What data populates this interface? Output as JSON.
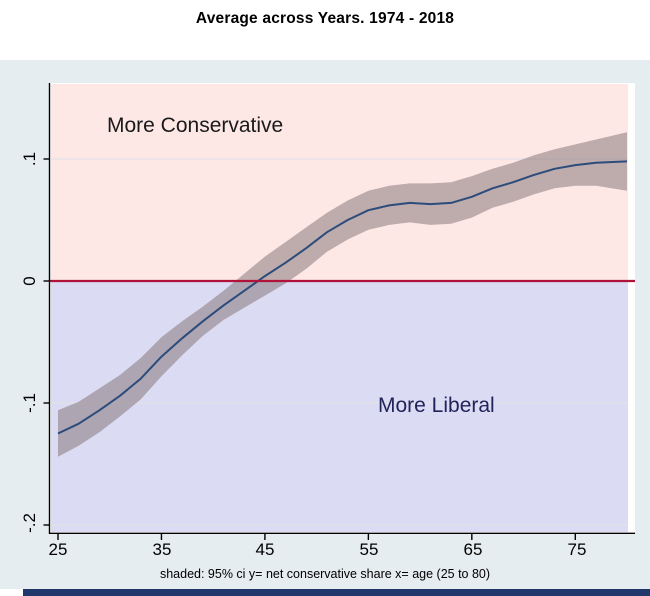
{
  "title": "Average across Years.  1974 - 2018",
  "annotations": {
    "conservative": "More Conservative",
    "liberal": "More Liberal"
  },
  "caption": "shaded: 95% ci  y= net conservative share  x= age (25 to 80)",
  "colors": {
    "graph_bg": "#e6edf0",
    "plot_bg": "#ffffff",
    "conservative_region": "#fde8e6",
    "liberal_region": "#dbdcf4",
    "gridline": "#e2e1e6",
    "ci_band": "rgba(128,110,112,0.5)",
    "mean_line": "#2c4c7c",
    "zero_line": "#b0123a",
    "axis": "#000000",
    "conservative_text": "#1a1a1a",
    "liberal_text": "#23235c",
    "window_strip": "#20386c"
  },
  "chart_data": {
    "type": "line",
    "title": "Average across Years.  1974 - 2018",
    "xlabel": "age (25 to 80)",
    "ylabel": "net conservative share",
    "xlim": [
      25,
      80
    ],
    "ylim": [
      -0.205,
      0.161
    ],
    "grid": true,
    "x_ticks": [
      25,
      35,
      45,
      55,
      65,
      75
    ],
    "x_tick_labels": [
      "25",
      "35",
      "45",
      "55",
      "65",
      "75"
    ],
    "y_ticks": [
      0.1,
      0,
      -0.1,
      -0.2
    ],
    "y_tick_labels": [
      ".1",
      "0",
      "-.1",
      "-.2"
    ],
    "zero_reference_line": 0,
    "x": [
      25,
      27,
      29,
      31,
      33,
      35,
      37,
      39,
      41,
      43,
      45,
      47,
      49,
      51,
      53,
      55,
      57,
      59,
      61,
      63,
      65,
      67,
      69,
      71,
      73,
      75,
      77,
      80
    ],
    "series": [
      {
        "name": "net conservative share (smoothed mean)",
        "values": [
          -0.125,
          -0.117,
          -0.106,
          -0.094,
          -0.08,
          -0.062,
          -0.047,
          -0.033,
          -0.02,
          -0.008,
          0.004,
          0.015,
          0.027,
          0.04,
          0.05,
          0.058,
          0.062,
          0.064,
          0.063,
          0.064,
          0.069,
          0.076,
          0.081,
          0.087,
          0.092,
          0.095,
          0.097,
          0.098
        ]
      },
      {
        "name": "95% CI upper",
        "values": [
          -0.106,
          -0.099,
          -0.088,
          -0.077,
          -0.063,
          -0.046,
          -0.033,
          -0.021,
          -0.008,
          0.006,
          0.02,
          0.032,
          0.044,
          0.056,
          0.066,
          0.074,
          0.078,
          0.08,
          0.08,
          0.081,
          0.086,
          0.092,
          0.097,
          0.103,
          0.108,
          0.112,
          0.116,
          0.122
        ]
      },
      {
        "name": "95% CI lower",
        "values": [
          -0.144,
          -0.135,
          -0.124,
          -0.111,
          -0.097,
          -0.078,
          -0.061,
          -0.045,
          -0.032,
          -0.022,
          -0.012,
          -0.002,
          0.01,
          0.024,
          0.034,
          0.042,
          0.046,
          0.048,
          0.046,
          0.047,
          0.052,
          0.06,
          0.065,
          0.071,
          0.076,
          0.078,
          0.078,
          0.074
        ]
      }
    ]
  }
}
